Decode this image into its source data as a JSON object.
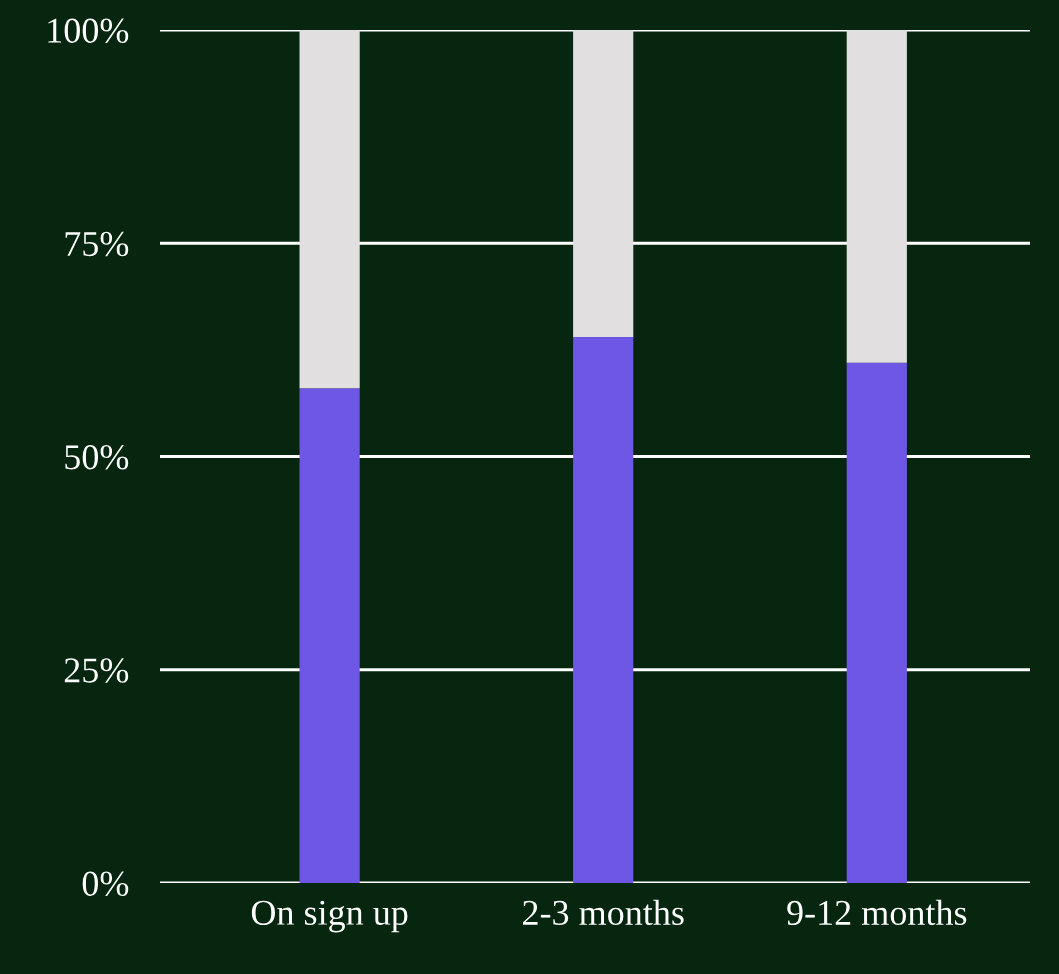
{
  "chart_data": {
    "type": "bar",
    "stacked": true,
    "categories": [
      "On sign up",
      "2-3 months",
      "9-12 months"
    ],
    "series": [
      {
        "color": "#6e57e5",
        "values": [
          58,
          64,
          61
        ]
      },
      {
        "color": "#e1dfe0",
        "values": [
          42,
          36,
          39
        ]
      }
    ],
    "ylim": [
      0,
      100
    ],
    "yticks": [
      {
        "value": 0,
        "label": "0%"
      },
      {
        "value": 25,
        "label": "25%"
      },
      {
        "value": 50,
        "label": "50%"
      },
      {
        "value": 75,
        "label": "75%"
      },
      {
        "value": 100,
        "label": "100%"
      }
    ],
    "grid": "y"
  }
}
